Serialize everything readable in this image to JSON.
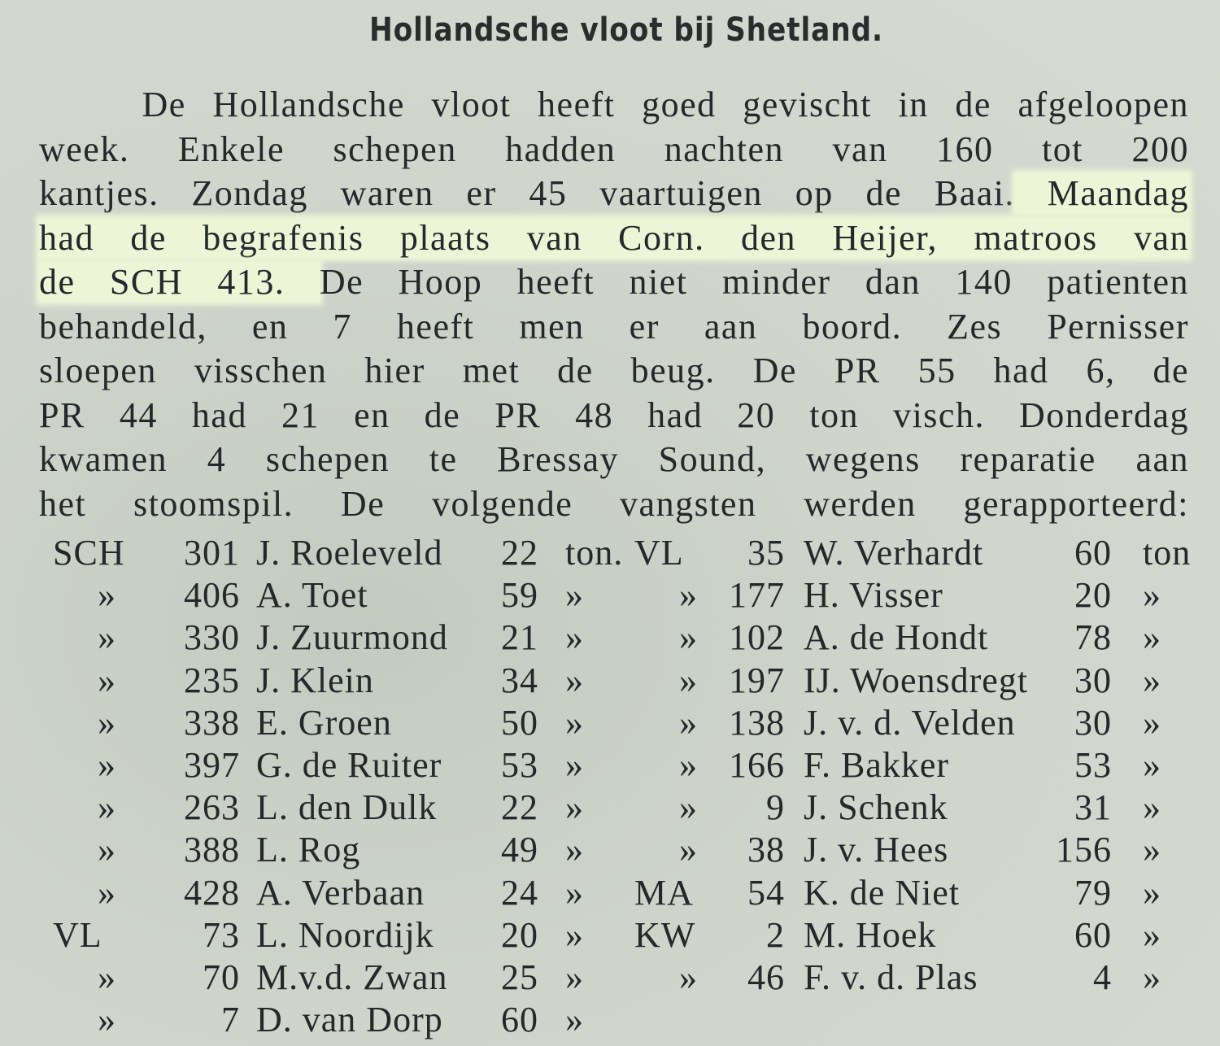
{
  "article": {
    "title": "Hollandsche vloot bij Shetland.",
    "highlight_color": "#eef4d6",
    "lines": [
      {
        "pre": "    De Hollandsche vloot heeft goed gevischt in de afgeloopen",
        "hl": "",
        "post": ""
      },
      {
        "pre": "week. Enkele schepen hadden nachten van 160 tot 200",
        "hl": "",
        "post": ""
      },
      {
        "pre": "kantjes. Zondag waren er 45 vaartuigen op de Baai.",
        "hl": " Maandag",
        "post": ""
      },
      {
        "pre": "",
        "hl": "had de begrafenis plaats van Corn. den Heijer, matroos van",
        "post": ""
      },
      {
        "pre": "",
        "hl": "de SCH 413. ",
        "post": "De Hoop heeft niet minder dan 140 patienten"
      },
      {
        "pre": "behandeld, en 7 heeft men er aan boord. Zes Pernisser",
        "hl": "",
        "post": ""
      },
      {
        "pre": "sloepen visschen hier met de beug. De PR 55 had 6, de",
        "hl": "",
        "post": ""
      },
      {
        "pre": "PR 44 had 21 en de PR 48 had 20 ton visch. Donderdag",
        "hl": "",
        "post": ""
      },
      {
        "pre": "kwamen 4 schepen te Bressay Sound, wegens reparatie aan",
        "hl": "",
        "post": ""
      },
      {
        "pre": "het stoomspil. De volgende vangsten werden gerapporteerd:",
        "hl": "",
        "post": ""
      }
    ]
  },
  "catches": {
    "left": [
      [
        "SCH",
        "301",
        "J. Roeleveld",
        "22",
        "ton."
      ],
      [
        "»",
        "406",
        "A. Toet",
        "59",
        "»"
      ],
      [
        "»",
        "330",
        "J. Zuurmond",
        "21",
        "»"
      ],
      [
        "»",
        "235",
        "J. Klein",
        "34",
        "»"
      ],
      [
        "»",
        "338",
        "E. Groen",
        "50",
        "»"
      ],
      [
        "»",
        "397",
        "G. de Ruiter",
        "53",
        "»"
      ],
      [
        "»",
        "263",
        "L. den Dulk",
        "22",
        "»"
      ],
      [
        "»",
        "388",
        "L. Rog",
        "49",
        "»"
      ],
      [
        "»",
        "428",
        "A. Verbaan",
        "24",
        "»"
      ],
      [
        "VL",
        "73",
        "L. Noordijk",
        "20",
        "»"
      ],
      [
        "»",
        "70",
        "M.v.d. Zwan",
        "25",
        "»"
      ],
      [
        "»",
        "7",
        "D. van Dorp",
        "60",
        "»"
      ]
    ],
    "right": [
      [
        "VL",
        "35",
        "W. Verhardt",
        "60",
        "ton"
      ],
      [
        "»",
        "177",
        "H. Visser",
        "20",
        "»"
      ],
      [
        "»",
        "102",
        "A. de Hondt",
        "78",
        "»"
      ],
      [
        "»",
        "197",
        "IJ. Woensdregt",
        "30",
        "»"
      ],
      [
        "»",
        "138",
        "J. v. d. Velden",
        "30",
        "»"
      ],
      [
        "»",
        "166",
        "F. Bakker",
        "53",
        "»"
      ],
      [
        "»",
        "9",
        "J. Schenk",
        "31",
        "»"
      ],
      [
        "»",
        "38",
        "J. v. Hees",
        "156",
        "»"
      ],
      [
        "MA",
        "54",
        "K. de Niet",
        "79",
        "»"
      ],
      [
        "KW",
        "2",
        "M. Hoek",
        "60",
        "»"
      ],
      [
        "»",
        "46",
        "F. v. d. Plas",
        "4",
        "»"
      ]
    ]
  }
}
